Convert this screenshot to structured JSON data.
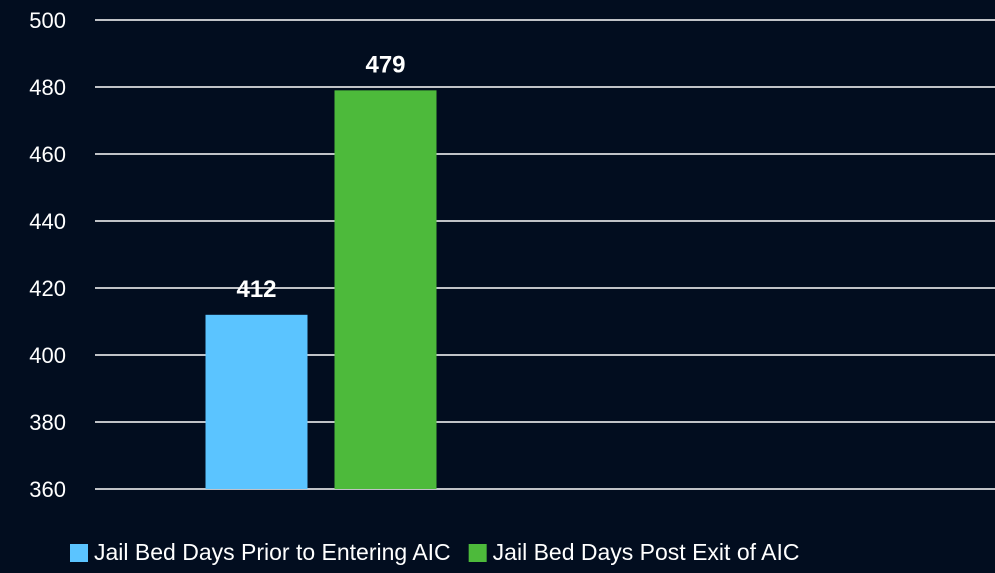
{
  "chart_data": {
    "type": "bar",
    "categories": [
      null
    ],
    "series": [
      {
        "name": "Jail Bed Days Prior to Entering AIC",
        "color": "#5bc4ff",
        "values": [
          412
        ]
      },
      {
        "name": "Jail Bed Days Post Exit of AIC",
        "color": "#4dba3b",
        "values": [
          479
        ]
      }
    ],
    "ylim": [
      360,
      500
    ],
    "yticks": [
      360,
      380,
      400,
      420,
      440,
      460,
      480,
      500
    ],
    "grid": true,
    "legend": "bottom"
  }
}
